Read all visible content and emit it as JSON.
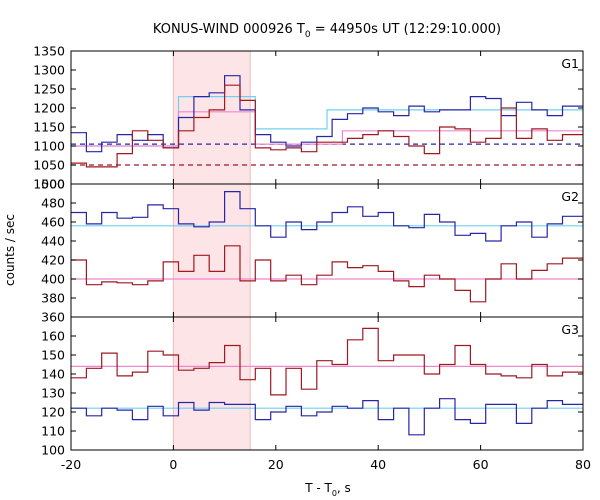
{
  "title": "KONUS-WIND 000926 T",
  "title_sub": "0",
  "title_rest": " = 44950s UT (12:29:10.000)",
  "xlabel_main": "T - T",
  "xlabel_sub": "0",
  "xlabel_rest": ", s",
  "ylabel": "counts / sec",
  "colors": {
    "blue": "#2626a8",
    "red": "#a01820",
    "cyan": "#70d0f0",
    "pink": "#ee88cc",
    "highlight": "#fde4e6"
  },
  "chart_data": {
    "type": "line",
    "step": true,
    "x_axis": {
      "min": -20,
      "max": 80,
      "ticks": [
        -20,
        0,
        20,
        40,
        60,
        80
      ]
    },
    "highlight_interval": [
      0,
      15
    ],
    "bin_edges": [
      -20,
      -17,
      -14,
      -11,
      -8,
      -5,
      -2,
      1,
      4,
      7,
      10,
      13,
      16,
      19,
      22,
      25,
      28,
      31,
      34,
      37,
      40,
      43,
      46,
      49,
      52,
      55,
      58,
      61,
      64,
      67,
      70,
      73,
      76,
      79,
      80
    ],
    "panels": [
      {
        "name": "G1",
        "ylim": [
          1000,
          1350
        ],
        "yticks": [
          1000,
          1050,
          1100,
          1150,
          1200,
          1250,
          1300,
          1350
        ],
        "series": [
          {
            "color": "blue",
            "values": [
              1135,
              1085,
              1110,
              1130,
              1115,
              1130,
              1095,
              1175,
              1230,
              1240,
              1285,
              1195,
              1130,
              1110,
              1100,
              1110,
              1125,
              1170,
              1185,
              1200,
              1190,
              1180,
              1205,
              1190,
              1195,
              1195,
              1230,
              1225,
              1180,
              1215,
              1195,
              1180,
              1205,
              1205
            ]
          },
          {
            "color": "red",
            "values": [
              1055,
              1045,
              1045,
              1080,
              1140,
              1115,
              1095,
              1140,
              1175,
              1195,
              1260,
              1220,
              1095,
              1090,
              1095,
              1085,
              1110,
              1110,
              1120,
              1130,
              1140,
              1125,
              1100,
              1080,
              1150,
              1145,
              1110,
              1120,
              1200,
              1120,
              1145,
              1115,
              1130,
              1130
            ]
          }
        ],
        "fits": [
          {
            "color": "cyan",
            "segments": [
              [
                -20,
                1100
              ],
              [
                1,
                1100
              ],
              [
                1,
                1230
              ],
              [
                16,
                1230
              ],
              [
                16,
                1145
              ],
              [
                30,
                1145
              ],
              [
                30,
                1195
              ],
              [
                80,
                1195
              ]
            ]
          },
          {
            "color": "pink",
            "segments": [
              [
                -20,
                1100
              ],
              [
                1,
                1100
              ],
              [
                1,
                1190
              ],
              [
                16,
                1190
              ],
              [
                16,
                1105
              ],
              [
                33,
                1105
              ],
              [
                33,
                1140
              ],
              [
                80,
                1140
              ]
            ]
          }
        ],
        "backgrounds": [
          {
            "color": "blue",
            "value": 1105
          },
          {
            "color": "red",
            "value": 1050
          }
        ]
      },
      {
        "name": "G2",
        "ylim": [
          360,
          500
        ],
        "yticks": [
          360,
          380,
          400,
          420,
          440,
          460,
          480,
          500
        ],
        "series": [
          {
            "color": "blue",
            "values": [
              470,
              458,
              470,
              464,
              465,
              478,
              474,
              458,
              455,
              460,
              492,
              474,
              456,
              444,
              460,
              452,
              460,
              470,
              476,
              466,
              470,
              456,
              454,
              468,
              460,
              446,
              448,
              440,
              456,
              460,
              444,
              458,
              466,
              466
            ]
          },
          {
            "color": "red",
            "values": [
              420,
              394,
              397,
              396,
              394,
              398,
              418,
              408,
              425,
              408,
              435,
              398,
              420,
              398,
              404,
              394,
              404,
              418,
              412,
              414,
              408,
              398,
              392,
              404,
              400,
              388,
              376,
              400,
              416,
              400,
              409,
              416,
              422,
              422
            ]
          }
        ],
        "fits": [
          {
            "color": "cyan",
            "segments": [
              [
                -20,
                456
              ],
              [
                80,
                456
              ]
            ]
          },
          {
            "color": "pink",
            "segments": [
              [
                -20,
                400
              ],
              [
                80,
                400
              ]
            ]
          }
        ]
      },
      {
        "name": "G3",
        "ylim": [
          100,
          170
        ],
        "yticks": [
          100,
          110,
          120,
          130,
          140,
          150,
          160
        ],
        "series": [
          {
            "color": "blue",
            "values": [
              122,
              118,
              122,
              121,
              116,
              123,
              118,
              125,
              121,
              125,
              124,
              124,
              116,
              120,
              123,
              118,
              120,
              123,
              122,
              126,
              116,
              122,
              108,
              122,
              127,
              116,
              114,
              124,
              124,
              114,
              122,
              126,
              124,
              124
            ]
          },
          {
            "color": "red",
            "values": [
              138,
              143,
              151,
              139,
              141,
              152,
              150,
              142,
              143,
              146,
              155,
              137,
              143,
              129,
              143,
              132,
              147,
              145,
              158,
              164,
              147,
              150,
              150,
              140,
              145,
              155,
              145,
              140,
              139,
              138,
              145,
              139,
              141,
              141
            ]
          }
        ],
        "fits": [
          {
            "color": "cyan",
            "segments": [
              [
                -20,
                122
              ],
              [
                80,
                122
              ]
            ]
          },
          {
            "color": "pink",
            "segments": [
              [
                -20,
                144
              ],
              [
                80,
                144
              ]
            ]
          }
        ]
      }
    ]
  }
}
